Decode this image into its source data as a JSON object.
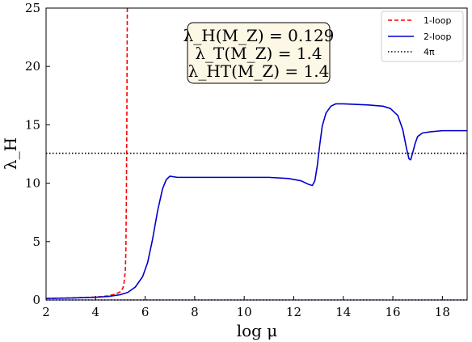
{
  "chart_data": {
    "type": "line",
    "title": "",
    "xlabel": "log μ",
    "ylabel": "λ_H",
    "xlim": [
      2,
      19
    ],
    "ylim": [
      0,
      25
    ],
    "x_ticks": [
      2,
      4,
      6,
      8,
      10,
      12,
      14,
      16,
      18
    ],
    "y_ticks": [
      0,
      5,
      10,
      15,
      20,
      25
    ],
    "grid": false,
    "legend_position": "top-right",
    "annotation": [
      "λ_H(M_Z) = 0.129",
      "λ_T(M_Z) = 1.4",
      "λ_HT(M_Z) = 1.4"
    ],
    "series": [
      {
        "name": "1-loop",
        "color": "#ff0000",
        "style": "dashed",
        "x": [
          2.0,
          3.0,
          4.0,
          4.5,
          4.8,
          5.0,
          5.1,
          5.15,
          5.2,
          5.22,
          5.24,
          5.26,
          5.28
        ],
        "y": [
          0.13,
          0.17,
          0.25,
          0.35,
          0.5,
          0.7,
          1.0,
          1.5,
          2.5,
          4.0,
          8.0,
          15.0,
          25.0
        ]
      },
      {
        "name": "2-loop",
        "color": "#0000cc",
        "style": "solid",
        "x": [
          2.0,
          3.0,
          4.0,
          4.5,
          5.0,
          5.3,
          5.6,
          5.9,
          6.1,
          6.3,
          6.5,
          6.7,
          6.85,
          7.0,
          7.3,
          8.0,
          9.0,
          10.0,
          11.0,
          11.8,
          12.3,
          12.6,
          12.75,
          12.85,
          12.95,
          13.05,
          13.15,
          13.3,
          13.5,
          13.7,
          14.0,
          15.0,
          15.6,
          15.9,
          16.2,
          16.4,
          16.55,
          16.65,
          16.72,
          16.8,
          16.9,
          17.0,
          17.2,
          17.5,
          18.0,
          19.0
        ],
        "y": [
          0.13,
          0.17,
          0.23,
          0.3,
          0.45,
          0.65,
          1.1,
          2.0,
          3.2,
          5.2,
          7.6,
          9.5,
          10.3,
          10.6,
          10.5,
          10.5,
          10.5,
          10.5,
          10.5,
          10.4,
          10.2,
          9.9,
          9.8,
          10.2,
          11.5,
          13.3,
          14.9,
          16.0,
          16.6,
          16.8,
          16.8,
          16.7,
          16.6,
          16.4,
          15.8,
          14.6,
          13.0,
          12.1,
          12.0,
          12.6,
          13.4,
          14.0,
          14.3,
          14.4,
          14.5,
          14.5
        ]
      },
      {
        "name": "4π",
        "color": "#000000",
        "style": "dotted",
        "x": [
          2,
          19
        ],
        "y": [
          12.566,
          12.566
        ]
      },
      {
        "color": "#0000cc",
        "style": "dotted",
        "x": [
          2,
          19
        ],
        "y": [
          0.0,
          0.0
        ]
      }
    ]
  }
}
